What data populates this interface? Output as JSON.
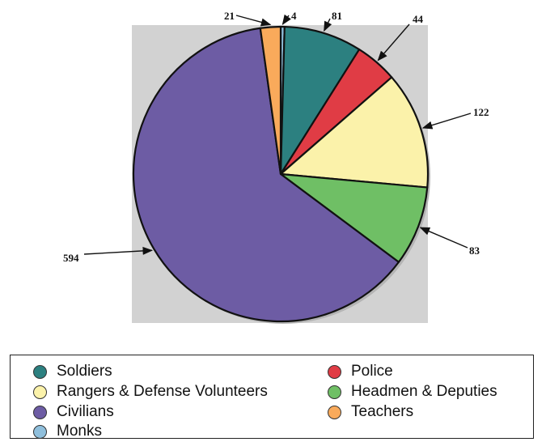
{
  "chart_data": {
    "type": "pie",
    "slices": [
      {
        "label": "Monks",
        "value": 4,
        "color": "#8fbfdc"
      },
      {
        "label": "Soldiers",
        "value": 81,
        "color": "#2c8080"
      },
      {
        "label": "Police",
        "value": 44,
        "color": "#e03c45"
      },
      {
        "label": "Rangers & Defense Volunteers",
        "value": 122,
        "color": "#fbf2aa"
      },
      {
        "label": "Headmen & Deputies",
        "value": 83,
        "color": "#6fbf65"
      },
      {
        "label": "Civilians",
        "value": 594,
        "color": "#6d5ca4"
      },
      {
        "label": "Teachers",
        "value": 21,
        "color": "#f9aa5b"
      }
    ],
    "start": "12 o'clock",
    "direction": "clockwise",
    "background": "#d2d2d2"
  },
  "legend": {
    "items": [
      {
        "label": "Soldiers",
        "color": "#2c8080"
      },
      {
        "label": "Police",
        "color": "#e03c45"
      },
      {
        "label": "Rangers & Defense Volunteers",
        "color": "#fbf2aa"
      },
      {
        "label": "Headmen & Deputies",
        "color": "#6fbf65"
      },
      {
        "label": "Civilians",
        "color": "#6d5ca4"
      },
      {
        "label": "Teachers",
        "color": "#f9aa5b"
      },
      {
        "label": "Monks",
        "color": "#8fbfdc"
      }
    ]
  }
}
